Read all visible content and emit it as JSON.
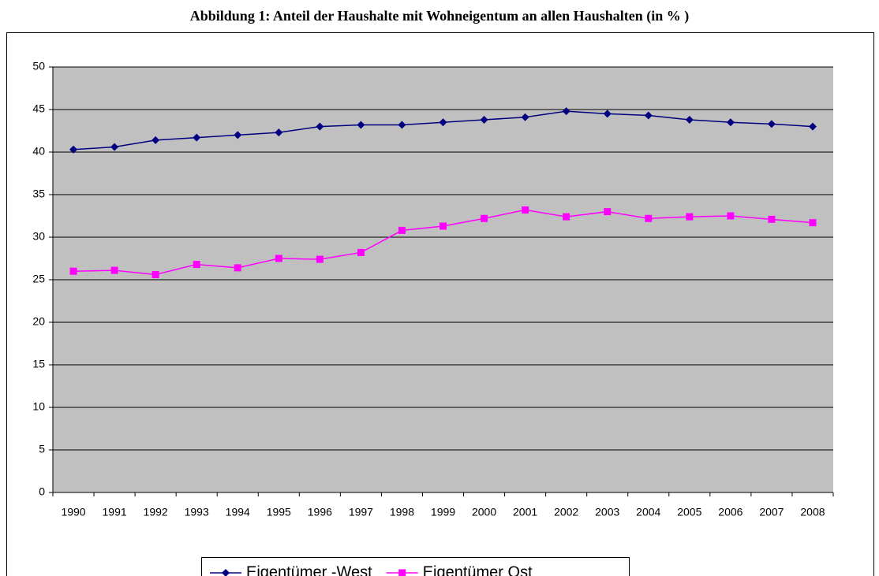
{
  "chart_data": {
    "type": "line",
    "title": "Abbildung 1: Anteil der Haushalte mit Wohneigentum an allen Haushalten (in % )",
    "categories": [
      "1990",
      "1991",
      "1992",
      "1993",
      "1994",
      "1995",
      "1996",
      "1997",
      "1998",
      "1999",
      "2000",
      "2001",
      "2002",
      "2003",
      "2004",
      "2005",
      "2006",
      "2007",
      "2008"
    ],
    "series": [
      {
        "name": "Eigentümer -West",
        "color": "#000080",
        "marker": "diamond",
        "values": [
          40.3,
          40.6,
          41.4,
          41.7,
          42.0,
          42.3,
          43.0,
          43.2,
          43.2,
          43.5,
          43.8,
          44.1,
          44.8,
          44.5,
          44.3,
          43.8,
          43.5,
          43.3,
          43.0
        ]
      },
      {
        "name": "Eigentümer Ost",
        "color": "#ff00ff",
        "marker": "square",
        "values": [
          26.0,
          26.1,
          25.6,
          26.8,
          26.4,
          27.5,
          27.4,
          28.2,
          30.8,
          31.3,
          32.2,
          33.2,
          32.4,
          33.0,
          32.2,
          32.4,
          32.5,
          32.1,
          31.7
        ]
      }
    ],
    "ylim": [
      0,
      50
    ],
    "yticks": [
      0,
      5,
      10,
      15,
      20,
      25,
      30,
      35,
      40,
      45,
      50
    ],
    "grid": true,
    "legend": "bottom"
  }
}
